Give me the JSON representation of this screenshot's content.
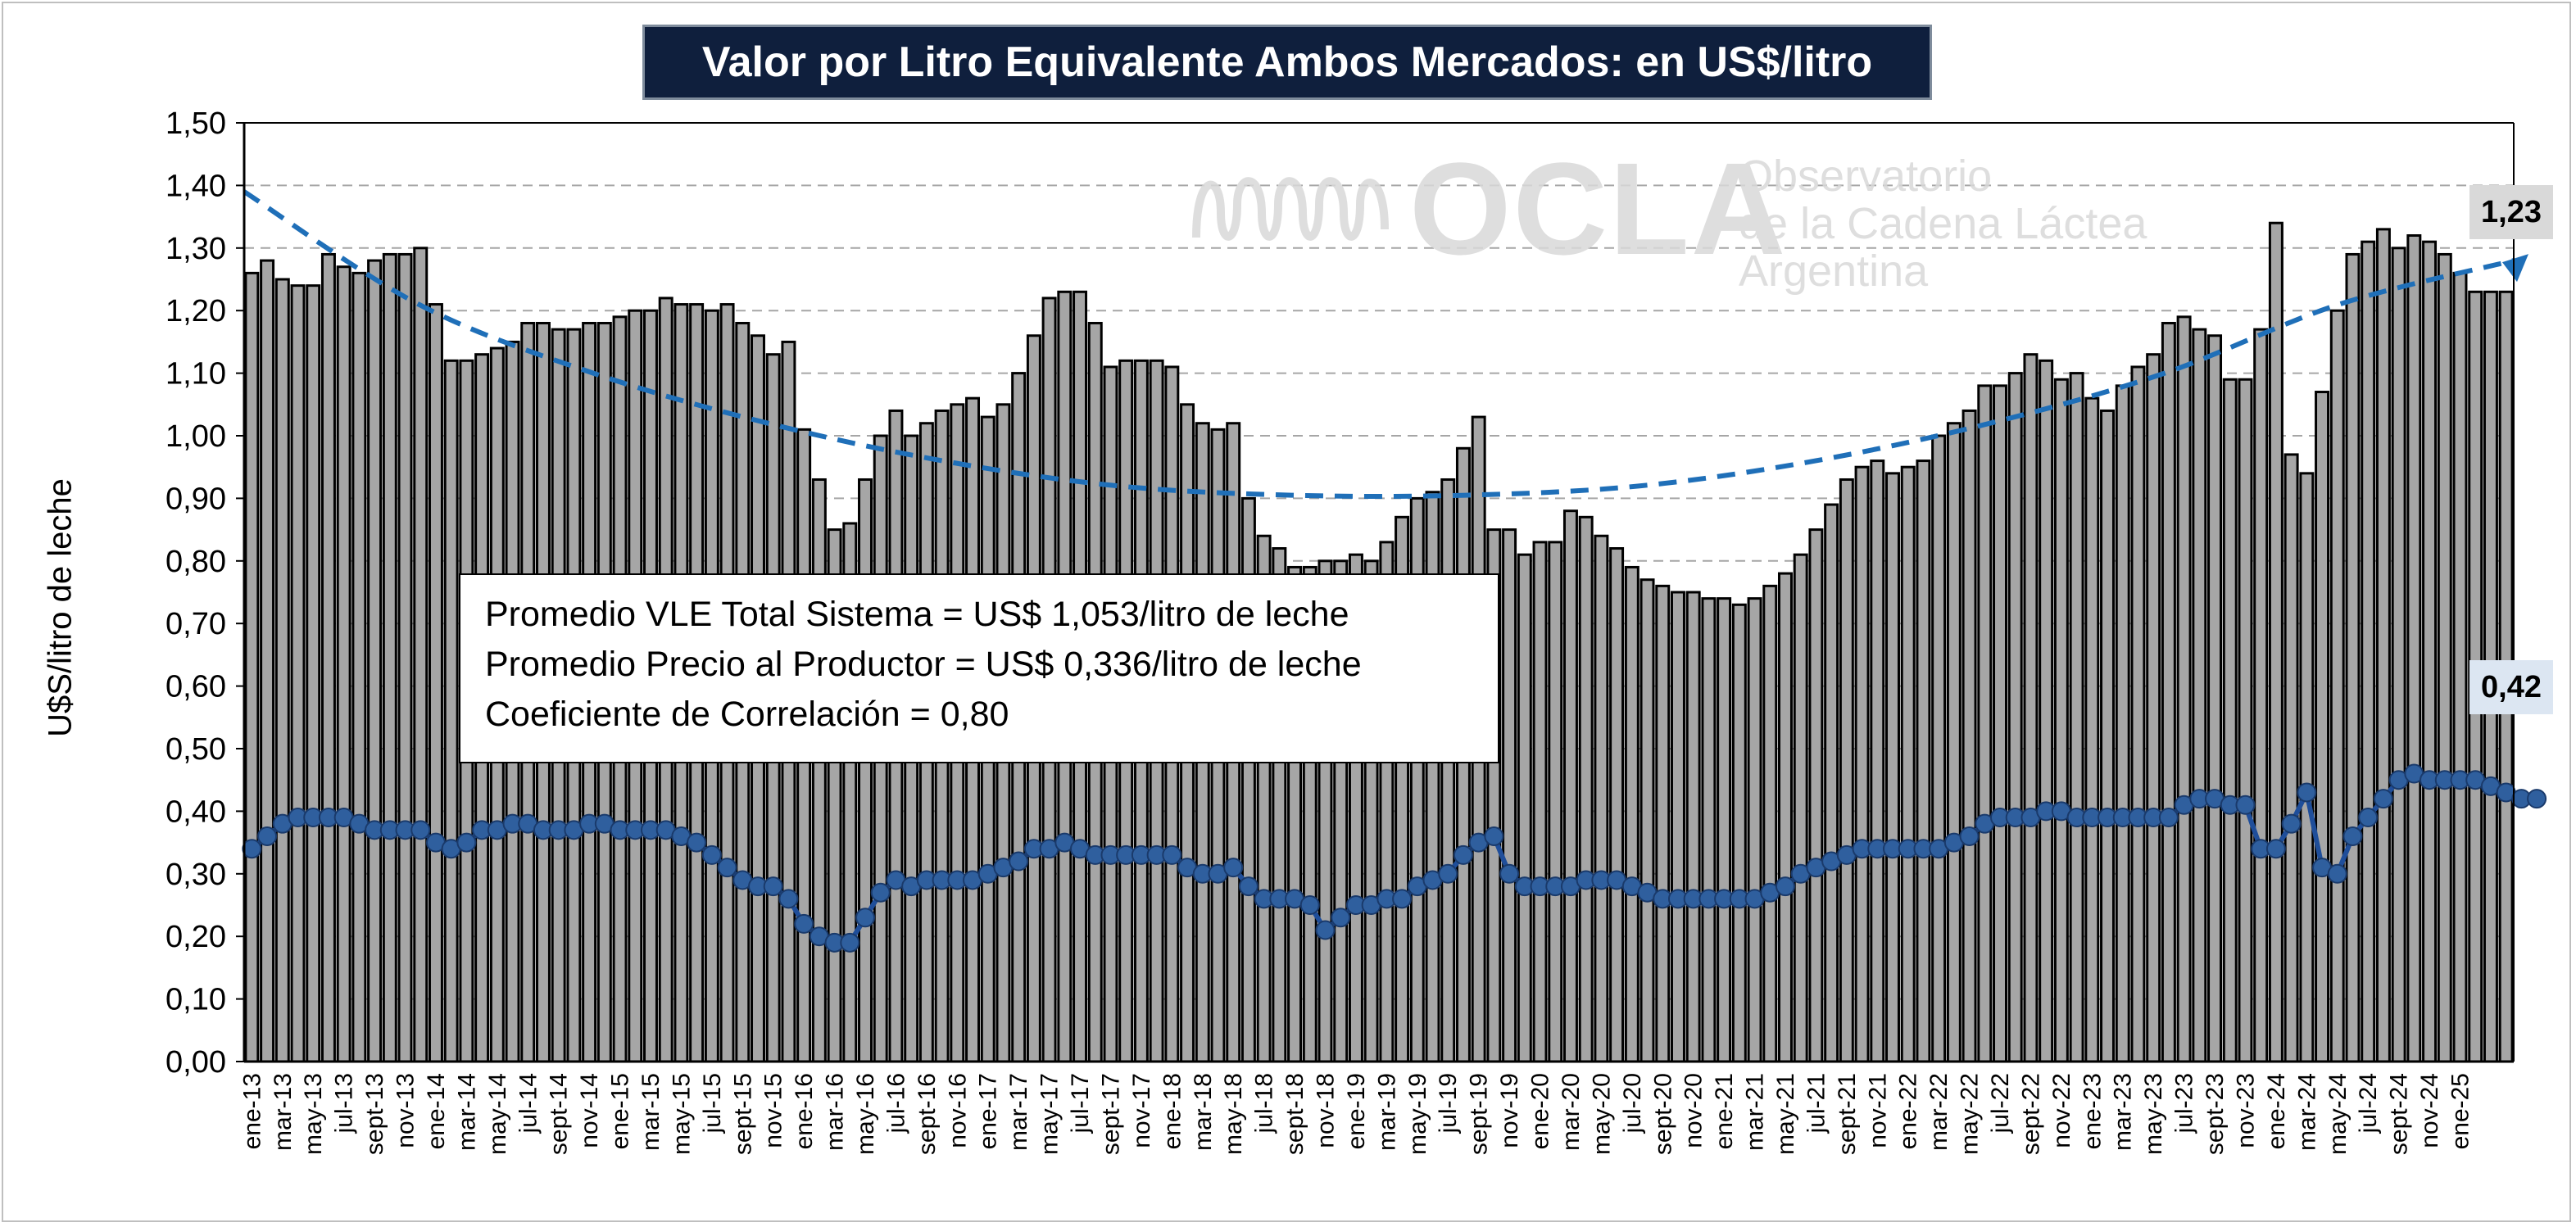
{
  "title": "Valor por Litro Equivalente Ambos Mercados: en US$/litro",
  "stats": {
    "line1": "Promedio VLE Total Sistema = US$ 1,053/litro de leche",
    "line2": "Promedio Precio al Productor = US$ 0,336/litro de leche",
    "line3": "Coeficiente de Correlación = 0,80"
  },
  "watermark": {
    "name": "OCLA",
    "line1": "Observatorio",
    "line2": "de la Cadena Láctea",
    "line3": "Argentina"
  },
  "callouts": {
    "vle_last": "1,23",
    "producer_last": "0,42"
  },
  "colors": {
    "bar": "#a6a6a6",
    "bar_edge": "#000000",
    "producer_line": "#1f4e9a",
    "producer_marker": "#1f4e9a",
    "trend": "#1f6fb8",
    "title_bg": "#0f1f3d"
  },
  "chart_data": {
    "type": "bar",
    "title": "Valor por Litro Equivalente Ambos Mercados: en US$/litro",
    "ylabel": "U$S/litro de leche",
    "xlabel": "",
    "ylim": [
      0,
      1.5
    ],
    "yticks": [
      "0,00",
      "0,10",
      "0,20",
      "0,30",
      "0,40",
      "0,50",
      "0,60",
      "0,70",
      "0,80",
      "0,90",
      "1,00",
      "1,10",
      "1,20",
      "1,30",
      "1,40",
      "1,50"
    ],
    "grid": "horizontal dashed",
    "x_tick_labels": [
      "ene-13",
      "mar-13",
      "may-13",
      "jul-13",
      "sept-13",
      "nov-13",
      "ene-14",
      "mar-14",
      "may-14",
      "jul-14",
      "sept-14",
      "nov-14",
      "ene-15",
      "mar-15",
      "may-15",
      "jul-15",
      "sept-15",
      "nov-15",
      "ene-16",
      "mar-16",
      "may-16",
      "jul-16",
      "sept-16",
      "nov-16",
      "ene-17",
      "mar-17",
      "may-17",
      "jul-17",
      "sept-17",
      "nov-17",
      "ene-18",
      "mar-18",
      "may-18",
      "jul-18",
      "sept-18",
      "nov-18",
      "ene-19",
      "mar-19",
      "may-19",
      "jul-19",
      "sept-19",
      "nov-19",
      "ene-20",
      "mar-20",
      "may-20",
      "jul-20",
      "sept-20",
      "nov-20",
      "ene-21",
      "mar-21",
      "may-21",
      "jul-21",
      "sept-21",
      "nov-21",
      "ene-22",
      "mar-22",
      "may-22",
      "jul-22",
      "sept-22",
      "nov-22",
      "ene-23",
      "mar-23",
      "may-23",
      "jul-23",
      "sept-23",
      "nov-23",
      "ene-24",
      "mar-24",
      "may-24",
      "jul-24",
      "sept-24",
      "nov-24",
      "ene-25"
    ],
    "series": [
      {
        "type": "bar",
        "values": [
          1.26,
          1.28,
          1.25,
          1.24,
          1.24,
          1.29,
          1.27,
          1.26,
          1.28,
          1.29,
          1.29,
          1.3,
          1.21,
          1.12,
          1.12,
          1.13,
          1.14,
          1.15,
          1.18,
          1.18,
          1.17,
          1.17,
          1.18,
          1.18,
          1.19,
          1.2,
          1.2,
          1.22,
          1.21,
          1.21,
          1.2,
          1.21,
          1.18,
          1.16,
          1.13,
          1.15,
          1.01,
          0.93,
          0.85,
          0.86,
          0.93,
          1.0,
          1.04,
          1.0,
          1.02,
          1.04,
          1.05,
          1.06,
          1.03,
          1.05,
          1.1,
          1.16,
          1.22,
          1.23,
          1.23,
          1.18,
          1.11,
          1.12,
          1.12,
          1.12,
          1.11,
          1.05,
          1.02,
          1.01,
          1.02,
          0.9,
          0.84,
          0.82,
          0.79,
          0.79,
          0.8,
          0.8,
          0.81,
          0.8,
          0.83,
          0.87,
          0.9,
          0.91,
          0.93,
          0.98,
          1.03,
          0.85,
          0.85,
          0.81,
          0.83,
          0.83,
          0.88,
          0.87,
          0.84,
          0.82,
          0.79,
          0.77,
          0.76,
          0.75,
          0.75,
          0.74,
          0.74,
          0.73,
          0.74,
          0.76,
          0.78,
          0.81,
          0.85,
          0.89,
          0.93,
          0.95,
          0.96,
          0.94,
          0.95,
          0.96,
          1.0,
          1.02,
          1.04,
          1.08,
          1.08,
          1.1,
          1.13,
          1.12,
          1.09,
          1.1,
          1.06,
          1.04,
          1.08,
          1.11,
          1.13,
          1.18,
          1.19,
          1.17,
          1.16,
          1.09,
          1.09,
          1.17,
          1.34,
          0.97,
          0.94,
          1.07,
          1.2,
          1.29,
          1.31,
          1.33,
          1.3,
          1.32,
          1.31,
          1.29,
          1.26,
          1.23,
          1.23,
          1.23
        ]
      },
      {
        "type": "line",
        "values": [
          0.34,
          0.36,
          0.38,
          0.39,
          0.39,
          0.39,
          0.39,
          0.38,
          0.37,
          0.37,
          0.37,
          0.37,
          0.35,
          0.34,
          0.35,
          0.37,
          0.37,
          0.38,
          0.38,
          0.37,
          0.37,
          0.37,
          0.38,
          0.38,
          0.37,
          0.37,
          0.37,
          0.37,
          0.36,
          0.35,
          0.33,
          0.31,
          0.29,
          0.28,
          0.28,
          0.26,
          0.22,
          0.2,
          0.19,
          0.19,
          0.23,
          0.27,
          0.29,
          0.28,
          0.29,
          0.29,
          0.29,
          0.29,
          0.3,
          0.31,
          0.32,
          0.34,
          0.34,
          0.35,
          0.34,
          0.33,
          0.33,
          0.33,
          0.33,
          0.33,
          0.33,
          0.31,
          0.3,
          0.3,
          0.31,
          0.28,
          0.26,
          0.26,
          0.26,
          0.25,
          0.21,
          0.23,
          0.25,
          0.25,
          0.26,
          0.26,
          0.28,
          0.29,
          0.3,
          0.33,
          0.35,
          0.36,
          0.3,
          0.28,
          0.28,
          0.28,
          0.28,
          0.29,
          0.29,
          0.29,
          0.28,
          0.27,
          0.26,
          0.26,
          0.26,
          0.26,
          0.26,
          0.26,
          0.26,
          0.27,
          0.28,
          0.3,
          0.31,
          0.32,
          0.33,
          0.34,
          0.34,
          0.34,
          0.34,
          0.34,
          0.34,
          0.35,
          0.36,
          0.38,
          0.39,
          0.39,
          0.39,
          0.4,
          0.4,
          0.39,
          0.39,
          0.39,
          0.39,
          0.39,
          0.39,
          0.39,
          0.41,
          0.42,
          0.42,
          0.41,
          0.41,
          0.34,
          0.34,
          0.38,
          0.43,
          0.31,
          0.3,
          0.36,
          0.39,
          0.42,
          0.45,
          0.46,
          0.45,
          0.45,
          0.45,
          0.45,
          0.44,
          0.43,
          0.42,
          0.42
        ]
      },
      {
        "type": "line",
        "style": "dashed trend",
        "values": [
          1.39,
          1.21,
          1.1,
          1.02,
          0.96,
          0.92,
          0.905,
          0.905,
          0.92,
          0.96,
          1.02,
          1.1,
          1.21,
          1.28
        ]
      }
    ]
  }
}
